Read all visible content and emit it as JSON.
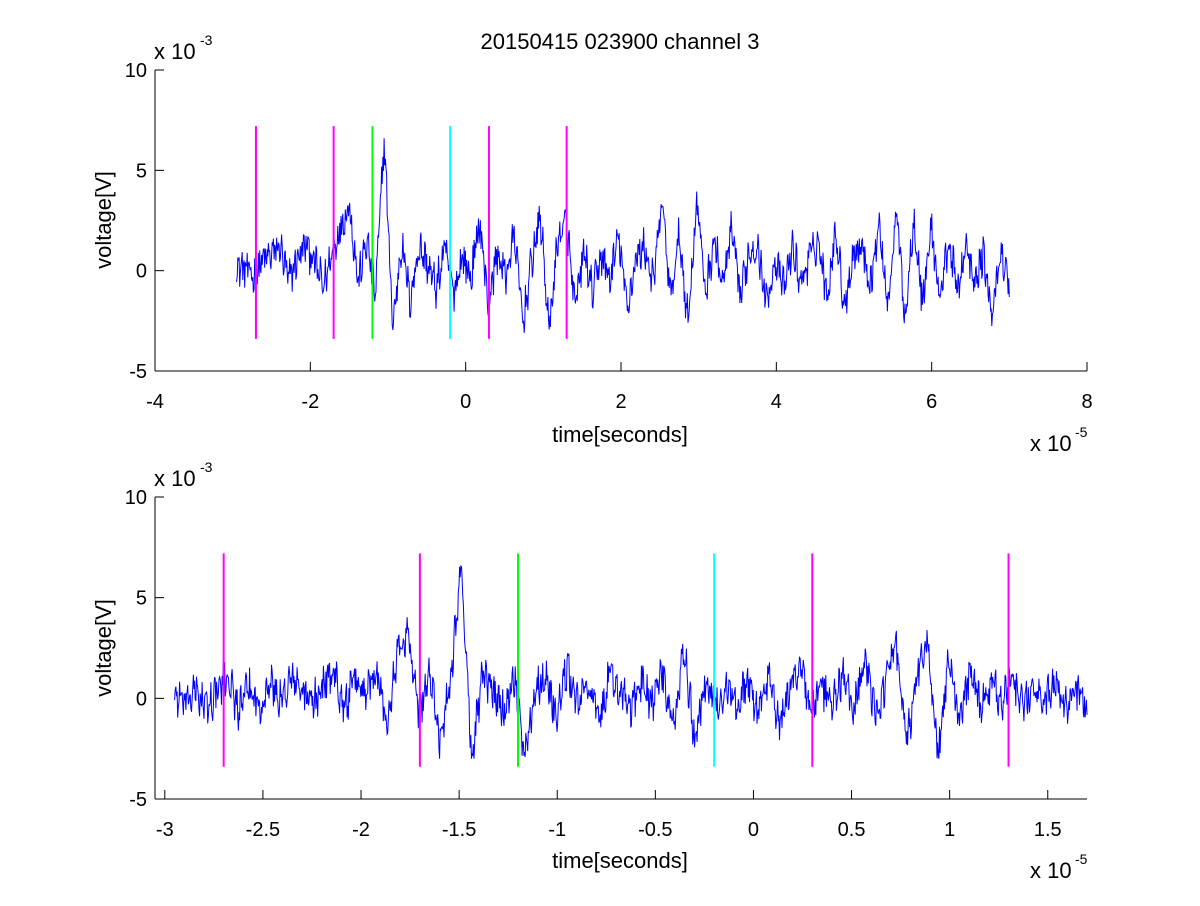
{
  "chart_data": [
    {
      "type": "line",
      "title": "20150415 023900 channel 3",
      "xlabel": "time[seconds]",
      "ylabel": "voltage[V]",
      "x_scale_label": "x 10",
      "x_scale_exponent": "-5",
      "y_scale_label": "x 10",
      "y_scale_exponent": "-3",
      "xlim": [
        -4,
        8
      ],
      "ylim": [
        -5,
        10
      ],
      "x_ticks": [
        "-4",
        "-2",
        "0",
        "2",
        "4",
        "6",
        "8"
      ],
      "y_ticks": [
        "-5",
        "0",
        "5",
        "10"
      ],
      "x_tick_values": [
        -4,
        -2,
        0,
        2,
        4,
        6,
        8
      ],
      "y_tick_values": [
        -5,
        0,
        5,
        10
      ],
      "grid": false,
      "signal": {
        "color": "#0000ff",
        "x_start": -2.95,
        "x_end": 7.0,
        "y_min": -3.1,
        "y_max": 6.6,
        "description_values": [
          0.2,
          0.1,
          -0.3,
          0.5,
          0.8,
          1.2,
          -0.5,
          0.6,
          1.3,
          0.4,
          -0.8,
          0.9,
          2.2,
          3.3,
          -0.6,
          1.5,
          -1.2,
          6.6,
          -2.8,
          1.4,
          -1.5,
          1.2,
          0.3,
          -0.9,
          1.1,
          -1.1,
          0.7,
          -0.4,
          2.5,
          -1.8,
          0.9,
          -0.3,
          1.8,
          -2.6,
          0.5,
          2.7,
          -3.0,
          1.6,
          2.4,
          -2.0,
          1.0,
          -1.2,
          0.8,
          -0.5,
          1.7,
          -1.9,
          0.6,
          1.2,
          -0.7,
          3.5,
          -1.4,
          1.8,
          -2.6,
          3.6,
          -1.1,
          1.5,
          -0.8,
          2.0,
          -1.3,
          0.9,
          1.3,
          -1.6,
          0.5,
          -0.9,
          1.1,
          -0.6,
          0.7,
          1.5,
          -1.3,
          2.1,
          -1.8,
          0.8,
          1.3,
          -0.7,
          2.3,
          -1.7,
          3.0,
          -2.4,
          2.7,
          -1.6,
          2.2,
          -1.4,
          1.5,
          -1.0,
          1.2,
          -0.8,
          0.9,
          -2.4,
          1.1,
          -0.9
        ]
      },
      "markers": [
        {
          "x": -2.7,
          "color": "#ff00ff"
        },
        {
          "x": -1.7,
          "color": "#ff00ff"
        },
        {
          "x": -1.2,
          "color": "#00ff00"
        },
        {
          "x": -0.2,
          "color": "#00ffff"
        },
        {
          "x": 0.3,
          "color": "#ff00ff"
        },
        {
          "x": 1.3,
          "color": "#ff00ff"
        }
      ],
      "marker_ylim": [
        -3.4,
        7.2
      ]
    },
    {
      "type": "line",
      "title": "",
      "xlabel": "time[seconds]",
      "ylabel": "voltage[V]",
      "x_scale_label": "x 10",
      "x_scale_exponent": "-5",
      "y_scale_label": "x 10",
      "y_scale_exponent": "-3",
      "xlim": [
        -3.05,
        1.7
      ],
      "ylim": [
        -5,
        10
      ],
      "x_ticks": [
        "-3",
        "-2.5",
        "-2",
        "-1.5",
        "-1",
        "-0.5",
        "0",
        "0.5",
        "1",
        "1.5"
      ],
      "y_ticks": [
        "-5",
        "0",
        "5",
        "10"
      ],
      "x_tick_values": [
        -3,
        -2.5,
        -2,
        -1.5,
        -1,
        -0.5,
        0,
        0.5,
        1,
        1.5
      ],
      "y_tick_values": [
        -5,
        0,
        5,
        10
      ],
      "grid": false,
      "signal": {
        "color": "#0000ff",
        "x_start": -2.95,
        "x_end": 1.7,
        "y_min": -3.0,
        "y_max": 6.6,
        "description_values": [
          0.2,
          -0.3,
          0.4,
          -0.5,
          0.3,
          1.2,
          -0.6,
          0.5,
          -0.4,
          0.8,
          -0.2,
          1.0,
          0.4,
          -0.3,
          0.7,
          1.4,
          -0.5,
          0.9,
          0.3,
          1.6,
          -1.1,
          2.3,
          3.3,
          -0.8,
          1.3,
          -2.0,
          0.9,
          6.6,
          -2.9,
          1.1,
          0.4,
          -0.7,
          1.2,
          -2.8,
          0.6,
          1.0,
          -0.9,
          1.5,
          -0.3,
          0.8,
          -1.2,
          1.1,
          0.4,
          -0.6,
          0.9,
          -0.2,
          1.2,
          -1.6,
          2.5,
          -2.1,
          0.8,
          -0.5,
          0.6,
          -0.3,
          0.9,
          -0.8,
          1.3,
          -1.6,
          0.5,
          1.8,
          -0.7,
          0.6,
          -0.4,
          1.2,
          -0.6,
          2.1,
          -0.8,
          0.7,
          2.6,
          -2.3,
          1.1,
          2.7,
          -3.0,
          2.2,
          -1.2,
          1.3,
          -0.6,
          0.8,
          -0.2,
          1.2,
          -0.4,
          0.6,
          -0.3,
          0.9,
          -0.5,
          0.3,
          -0.8
        ]
      },
      "markers": [
        {
          "x": -2.7,
          "color": "#ff00ff"
        },
        {
          "x": -1.7,
          "color": "#ff00ff"
        },
        {
          "x": -1.2,
          "color": "#00ff00"
        },
        {
          "x": -0.2,
          "color": "#00ffff"
        },
        {
          "x": 0.3,
          "color": "#ff00ff"
        },
        {
          "x": 1.3,
          "color": "#ff00ff"
        }
      ],
      "marker_ylim": [
        -3.4,
        7.2
      ]
    }
  ]
}
